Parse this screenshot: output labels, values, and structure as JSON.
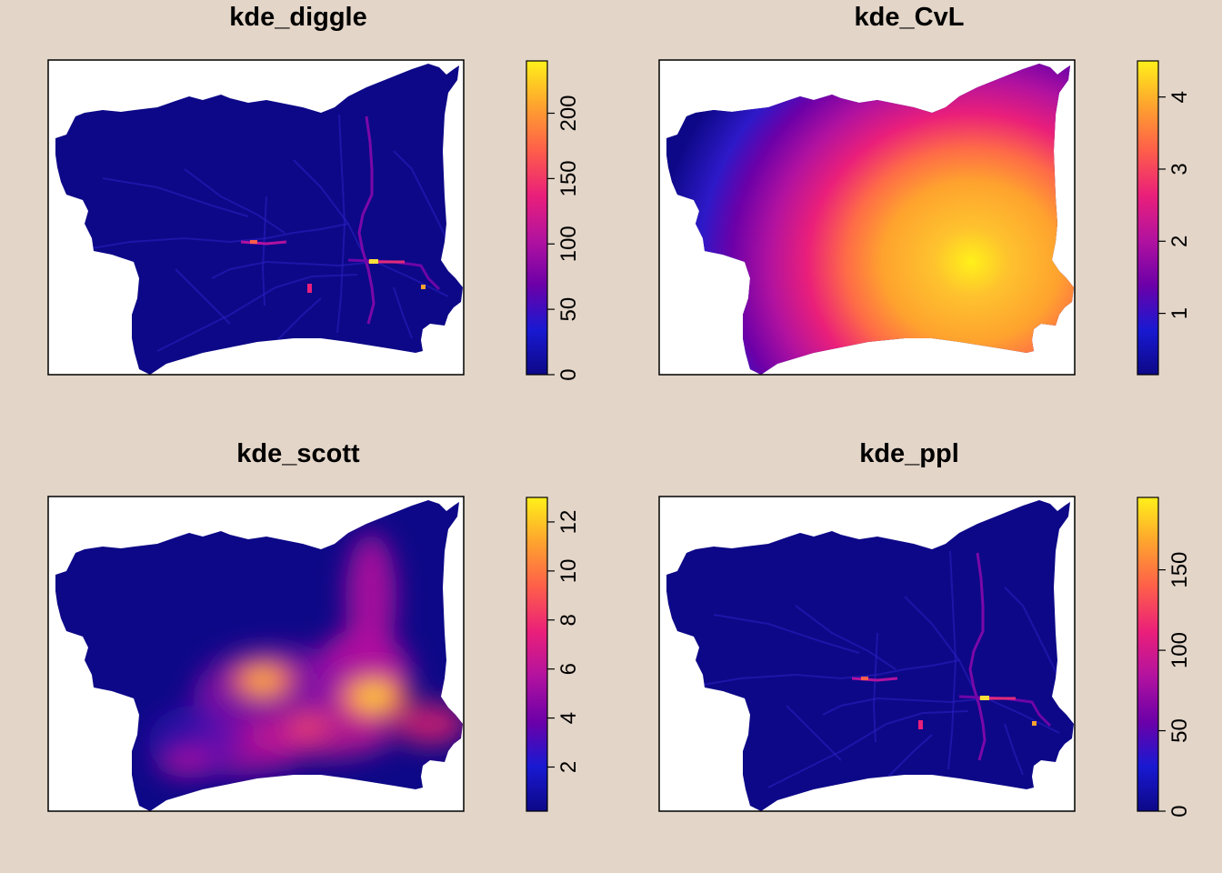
{
  "chart_data": [
    {
      "type": "heatmap",
      "title": "kde_diggle",
      "pattern": "roads",
      "colorbar": {
        "min": 0,
        "max": 240,
        "ticks": [
          "0",
          "50",
          "100",
          "150",
          "200"
        ],
        "tick_values": [
          0,
          50,
          100,
          150,
          200
        ]
      }
    },
    {
      "type": "heatmap",
      "title": "kde_CvL",
      "pattern": "smooth",
      "colorbar": {
        "min": 0.15,
        "max": 4.5,
        "ticks": [
          "1",
          "2",
          "3",
          "4"
        ],
        "tick_values": [
          1,
          2,
          3,
          4
        ]
      }
    },
    {
      "type": "heatmap",
      "title": "kde_scott",
      "pattern": "clusters",
      "colorbar": {
        "min": 0.2,
        "max": 13,
        "ticks": [
          "2",
          "4",
          "6",
          "8",
          "10",
          "12"
        ],
        "tick_values": [
          2,
          4,
          6,
          8,
          10,
          12
        ]
      }
    },
    {
      "type": "heatmap",
      "title": "kde_ppl",
      "pattern": "roads",
      "colorbar": {
        "min": 0,
        "max": 195,
        "ticks": [
          "0",
          "50",
          "100",
          "150"
        ],
        "tick_values": [
          0,
          50,
          100,
          150
        ]
      }
    }
  ],
  "palette": [
    "#0D0887",
    "#1919D2",
    "#6C00A8",
    "#B2129F",
    "#EA1F7A",
    "#FE5E4A",
    "#FEA32E",
    "#FFF01A"
  ],
  "background_color": "#E3D5C8",
  "outside_color": "#FFFFFF"
}
